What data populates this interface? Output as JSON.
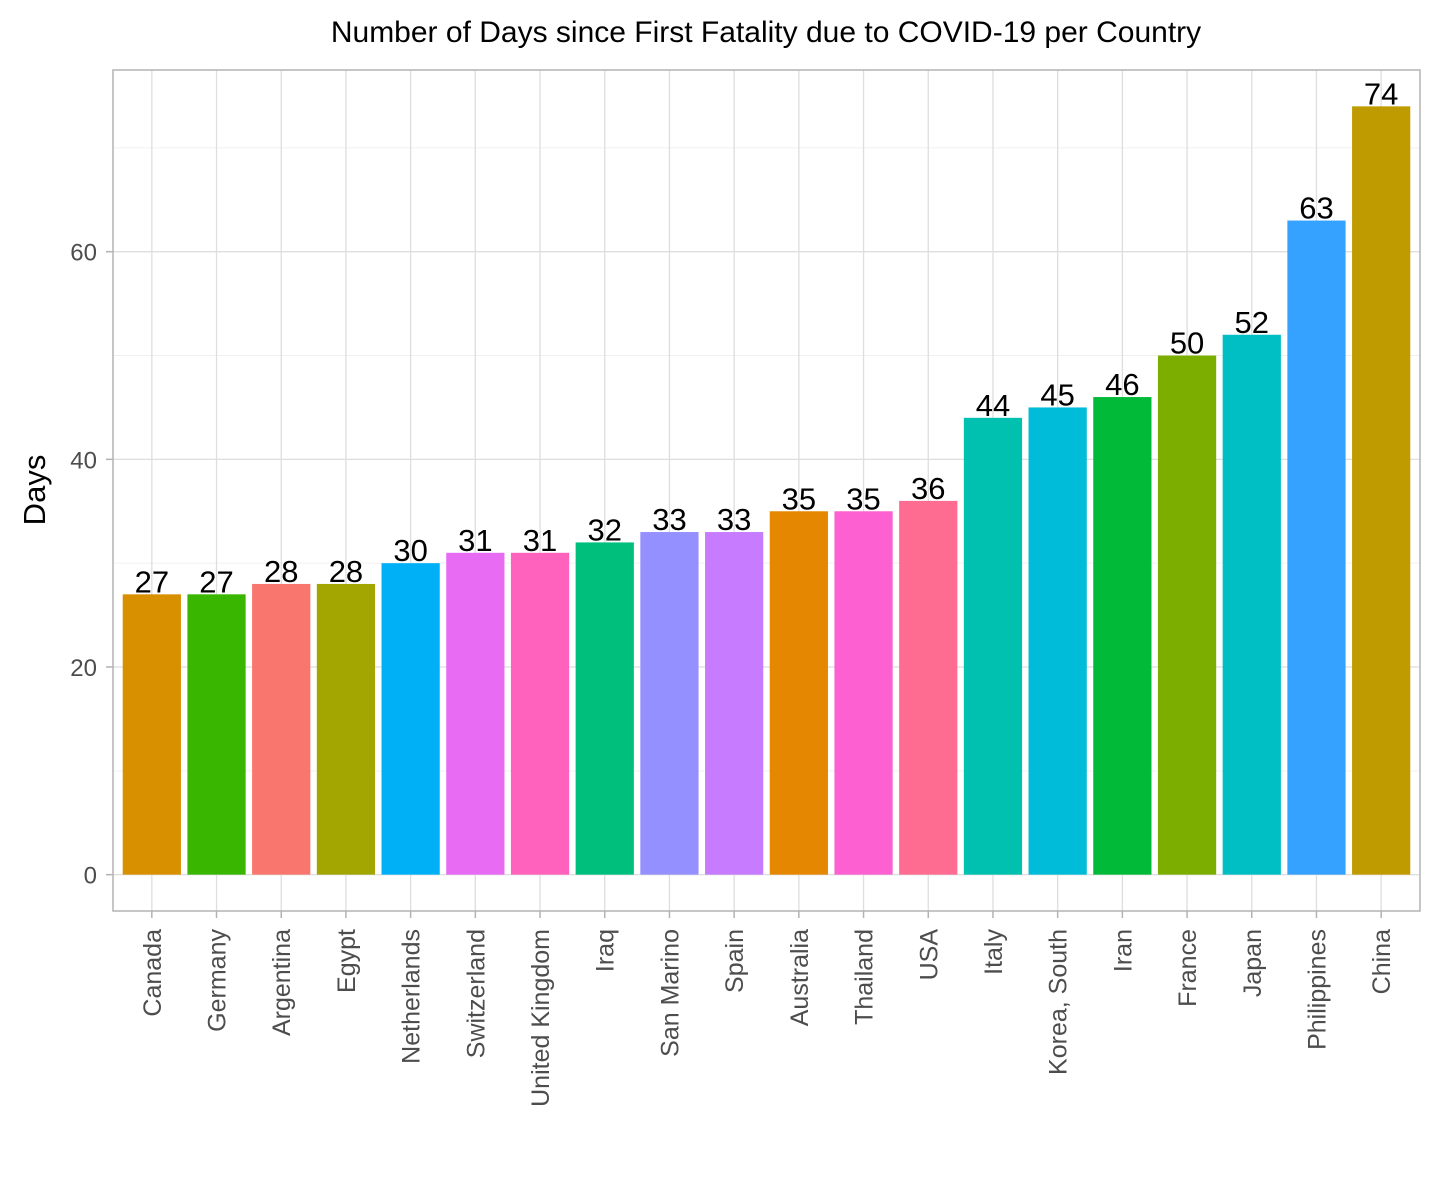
{
  "chart_data": {
    "type": "bar",
    "title": "Number of Days since First Fatality due to COVID-19 per Country",
    "xlabel": "",
    "ylabel": "Days",
    "ylim": [
      -3.5,
      77.5
    ],
    "yticks": [
      0,
      20,
      40,
      60
    ],
    "grid": true,
    "legend": "none",
    "categories": [
      "Canada",
      "Germany",
      "Argentina",
      "Egypt",
      "Netherlands",
      "Switzerland",
      "United Kingdom",
      "Iraq",
      "San Marino",
      "Spain",
      "Australia",
      "Thailand",
      "USA",
      "Italy",
      "Korea, South",
      "Iran",
      "France",
      "Japan",
      "Philippines",
      "China"
    ],
    "values": [
      27,
      27,
      28,
      28,
      30,
      31,
      31,
      32,
      33,
      33,
      35,
      35,
      36,
      44,
      45,
      46,
      50,
      52,
      63,
      74
    ],
    "colors": [
      "#D89000",
      "#39B600",
      "#F8766D",
      "#A3A500",
      "#00B0F6",
      "#E76BF3",
      "#FF62BC",
      "#00BF7D",
      "#9590FF",
      "#C77CFF",
      "#E58700",
      "#FD61D1",
      "#FF6C91",
      "#00C0AF",
      "#00BCD8",
      "#00BA38",
      "#7CAE00",
      "#00BFC4",
      "#35A2FF",
      "#C09B00"
    ],
    "data_labels": true
  }
}
